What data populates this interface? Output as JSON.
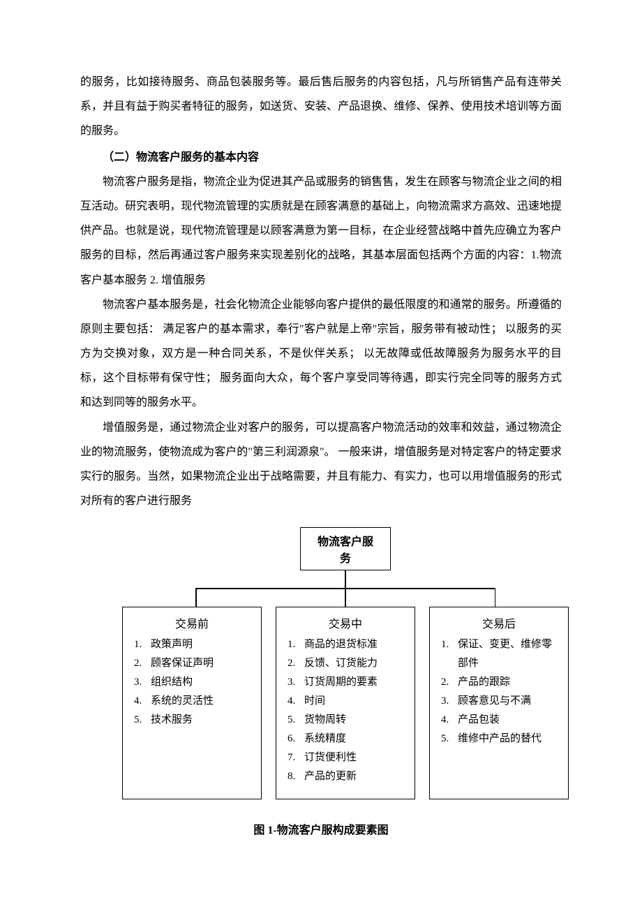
{
  "para1": "的服务，比如接待服务、商品包装服务等。最后售后服务的内容包括，凡与所销售产品有连带关系，并且有益于购买者特征的服务，如送货、安装、产品退换、维修、保养、使用技术培训等方面的服务。",
  "section_title": "（二）物流客户服务的基本内容",
  "para2": "物流客户服务是指，物流企业为促进其产品或服务的销售售，发生在顾客与物流企业之间的相互活动。研究表明，现代物流管理的实质就是在顾客满意的基础上，向物流需求方高效、迅速地提供产品。也就是说，现代物流管理是以顾客满意为第一目标，在企业经营战略中首先应确立为客户服务的目标，然后再通过客户服务来实现差别化的战略，其基本层面包括两个方面的内容：1.物流客户基本服务 2. 增值服务",
  "para3": "物流客户基本服务是，社会化物流企业能够向客户提供的最低限度的和通常的服务。所遵循的原则主要包括：  满足客户的基本需求，奉行\"客户就是上帝\"宗旨，服务带有被动性；  以服务的买方为交换对象，双方是一种合同关系，不是伙伴关系；  以无故障或低故障服务为服务水平的目标，这个目标带有保守性；  服务面向大众，每个客户享受同等待遇，即实行完全同等的服务方式和达到同等的服务水平。",
  "para4": "增值服务是，通过物流企业对客户的服务，可以提高客户物流活动的效率和效益，通过物流企业的物流服务，使物流成为客户的\"第三利润源泉\"。  一般来讲，增值服务是对特定客户的特定要求实行的服务。当然，如果物流企业出于战略需要，并且有能力、有实力，也可以用增值服务的形式对所有的客户进行服务",
  "diagram": {
    "root": "物流客户服务",
    "children": [
      {
        "title": "交易前",
        "items": [
          "政策声明",
          "顾客保证声明",
          "组织结构",
          "系统的灵活性",
          "技术服务"
        ]
      },
      {
        "title": "交易中",
        "items": [
          "商品的退货标准",
          "反馈、订货能力",
          "订货周期的要素",
          "时间",
          "货物周转",
          "系统精度",
          "订货便利性",
          "产品的更新"
        ]
      },
      {
        "title": "交易后",
        "items": [
          "保证、变更、维修零部件",
          "产品的跟踪",
          "顾客意见与不满",
          "产品包装",
          "维修中产品的替代"
        ]
      }
    ]
  },
  "figure_caption": "图 1-物流客户服构成要素图"
}
